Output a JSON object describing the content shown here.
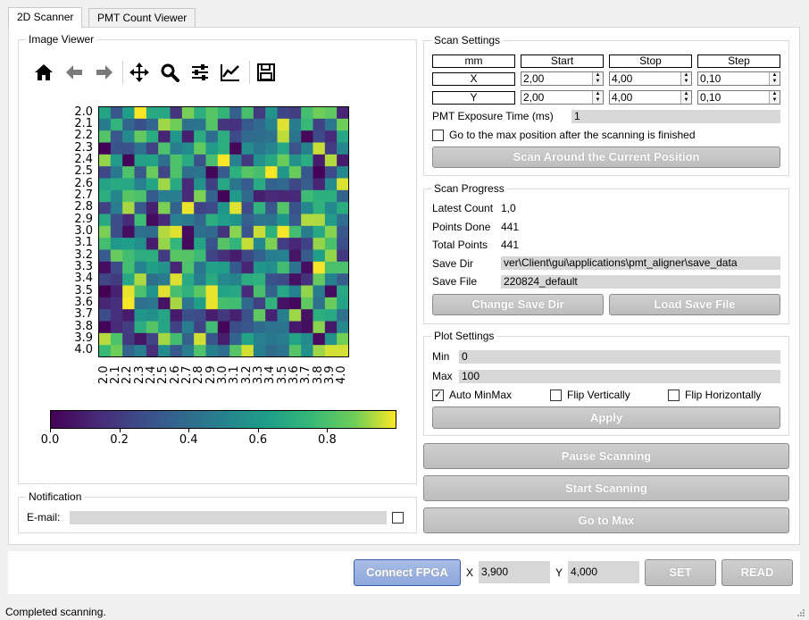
{
  "tabs": [
    {
      "label": "2D Scanner"
    },
    {
      "label": "PMT Count Viewer"
    }
  ],
  "image_viewer": {
    "title": "Image Viewer",
    "toolbar_icons": [
      "home-icon",
      "back-arrow-icon",
      "forward-arrow-icon",
      "pan-icon",
      "zoom-icon",
      "configure-subplots-icon",
      "edit-axis-icon",
      "save-icon"
    ]
  },
  "chart_data": {
    "type": "heatmap",
    "x_ticks": [
      "2.0",
      "2.1",
      "2.2",
      "2.3",
      "2.4",
      "2.5",
      "2.6",
      "2.7",
      "2.8",
      "2.9",
      "3.0",
      "3.1",
      "3.2",
      "3.3",
      "3.4",
      "3.5",
      "3.6",
      "3.7",
      "3.8",
      "3.9",
      "4.0"
    ],
    "y_ticks": [
      "2.0",
      "2.1",
      "2.2",
      "2.3",
      "2.4",
      "2.5",
      "2.6",
      "2.7",
      "2.8",
      "2.9",
      "3.0",
      "3.1",
      "3.2",
      "3.3",
      "3.4",
      "3.5",
      "3.6",
      "3.7",
      "3.8",
      "3.9",
      "4.0"
    ],
    "colormap": "viridis",
    "colorbar_ticks": [
      "0.0",
      "0.2",
      "0.4",
      "0.6",
      "0.8"
    ],
    "vmin": 0,
    "vmax": 1
  },
  "notification": {
    "title": "Notification",
    "email_label": "E-mail:"
  },
  "scan_settings": {
    "title": "Scan Settings",
    "headers": [
      "mm",
      "Start",
      "Stop",
      "Step"
    ],
    "rows": [
      {
        "axis": "X",
        "start": "2,00",
        "stop": "4,00",
        "step": "0,10"
      },
      {
        "axis": "Y",
        "start": "2,00",
        "stop": "4,00",
        "step": "0,10"
      }
    ],
    "exposure_label": "PMT Exposure Time (ms)",
    "exposure_value": "1",
    "goto_max_label": "Go to the max position after the scanning is finished",
    "scan_around_button": "Scan Around the Current Position"
  },
  "scan_progress": {
    "title": "Scan Progress",
    "latest_count_label": "Latest Count",
    "latest_count_value": "1,0",
    "points_done_label": "Points Done",
    "points_done_value": "441",
    "total_points_label": "Total Points",
    "total_points_value": "441",
    "save_dir_label": "Save Dir",
    "save_dir_value": "ver\\Client\\gui\\applications\\pmt_aligner\\save_data",
    "save_file_label": "Save File",
    "save_file_value": "220824_default",
    "change_dir_button": "Change Save Dir",
    "load_file_button": "Load Save File"
  },
  "plot_settings": {
    "title": "Plot Settings",
    "min_label": "Min",
    "min_value": "0",
    "max_label": "Max",
    "max_value": "100",
    "auto_minmax_label": "Auto MinMax",
    "auto_minmax_checked": true,
    "flip_v_label": "Flip Vertically",
    "flip_h_label": "Flip Horizontally",
    "apply_button": "Apply"
  },
  "actions": {
    "pause_button": "Pause Scanning",
    "start_button": "Start Scanning",
    "goto_max_button": "Go to Max"
  },
  "bottom_bar": {
    "connect_button": "Connect FPGA",
    "x_label": "X",
    "x_value": "3,900",
    "y_label": "Y",
    "y_value": "4,000",
    "set_button": "SET",
    "read_button": "READ"
  },
  "status_bar": {
    "text": "Completed scanning."
  }
}
